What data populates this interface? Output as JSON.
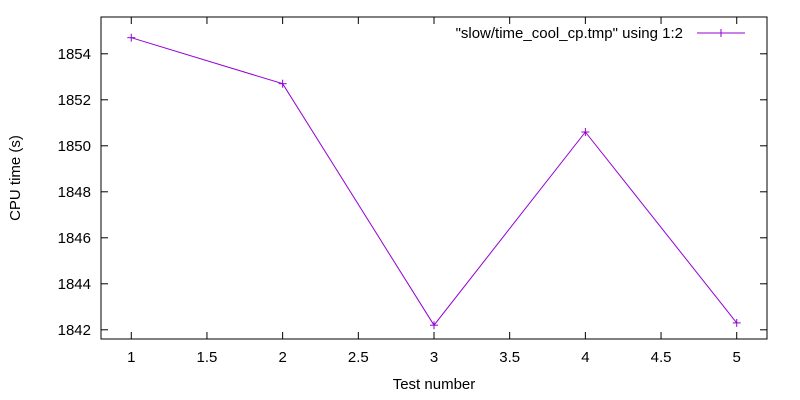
{
  "chart_data": {
    "type": "line",
    "xlabel": "Test number",
    "ylabel": "CPU time (s)",
    "xlim": [
      0.8,
      5.2
    ],
    "ylim": [
      1841.6,
      1855.6
    ],
    "x_ticks": [
      1,
      1.5,
      2,
      2.5,
      3,
      3.5,
      4,
      4.5,
      5
    ],
    "x_tick_labels": [
      "1",
      "1.5",
      "2",
      "2.5",
      "3",
      "3.5",
      "4",
      "4.5",
      "5"
    ],
    "y_ticks": [
      1842,
      1844,
      1846,
      1848,
      1850,
      1852,
      1854
    ],
    "y_tick_labels": [
      "1842",
      "1844",
      "1846",
      "1848",
      "1850",
      "1852",
      "1854"
    ],
    "grid": false,
    "legend_position": "top-right",
    "series": [
      {
        "name": "\"slow/time_cool_cp.tmp\" using 1:2",
        "color": "#9400d3",
        "marker": "plus",
        "x": [
          1,
          2,
          3,
          4,
          5
        ],
        "y": [
          1854.7,
          1852.7,
          1842.2,
          1850.6,
          1842.3
        ]
      }
    ]
  }
}
